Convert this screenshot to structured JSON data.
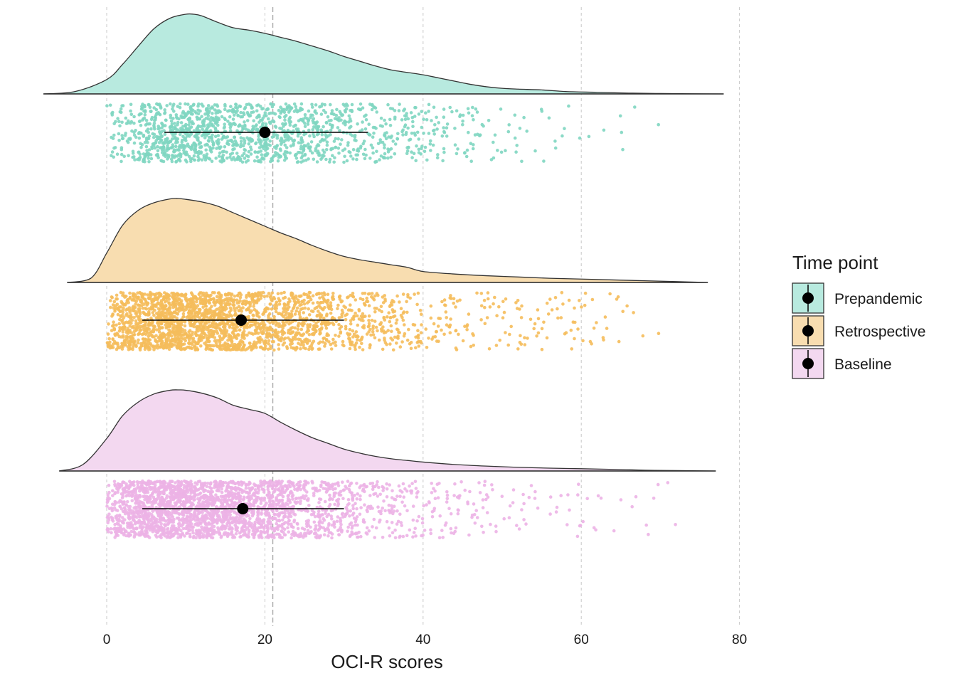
{
  "chart_data": {
    "type": "raincloud",
    "xlabel": "OCI-R scores",
    "xlim": [
      -8,
      80
    ],
    "x_ticks": [
      0,
      20,
      40,
      60,
      80
    ],
    "grid": "vertical-dashed",
    "reference_line": 21,
    "legend": {
      "title": "Time point",
      "placement": "right"
    },
    "series": [
      {
        "name": "Prepandemic",
        "color": "#7fd6c1",
        "fill": "#b8eadf",
        "mean": 20,
        "interval": [
          7.3,
          33
        ],
        "range": [
          0,
          71
        ],
        "density_x": [
          -8,
          -4,
          0,
          2,
          4,
          6,
          8,
          10,
          11,
          12,
          14,
          16,
          18,
          20,
          22,
          24,
          26,
          28,
          30,
          32,
          34,
          36,
          38,
          40,
          42,
          44,
          46,
          48,
          50,
          52,
          55,
          58,
          62,
          66,
          70,
          74,
          78
        ],
        "density_y": [
          0,
          0.03,
          0.18,
          0.37,
          0.6,
          0.82,
          0.95,
          1.0,
          1.0,
          0.98,
          0.9,
          0.83,
          0.8,
          0.76,
          0.71,
          0.66,
          0.6,
          0.54,
          0.47,
          0.41,
          0.35,
          0.3,
          0.27,
          0.24,
          0.2,
          0.16,
          0.12,
          0.09,
          0.07,
          0.06,
          0.05,
          0.03,
          0.02,
          0.01,
          0.005,
          0.002,
          0
        ]
      },
      {
        "name": "Retrospective",
        "color": "#f5bd5b",
        "fill": "#f8ddb0",
        "mean": 17,
        "interval": [
          4.5,
          30
        ],
        "range": [
          0,
          71
        ],
        "density_x": [
          -5,
          -2,
          0,
          2,
          4,
          6,
          8,
          9,
          10,
          12,
          14,
          16,
          18,
          20,
          22,
          24,
          26,
          28,
          30,
          32,
          34,
          36,
          38,
          40,
          44,
          48,
          52,
          56,
          60,
          64,
          68,
          72,
          76
        ],
        "density_y": [
          0,
          0.05,
          0.35,
          0.68,
          0.86,
          0.95,
          0.995,
          1.0,
          0.99,
          0.96,
          0.91,
          0.83,
          0.75,
          0.67,
          0.59,
          0.52,
          0.44,
          0.37,
          0.31,
          0.27,
          0.24,
          0.21,
          0.18,
          0.13,
          0.1,
          0.08,
          0.065,
          0.05,
          0.04,
          0.03,
          0.02,
          0.01,
          0
        ]
      },
      {
        "name": "Baseline",
        "color": "#ecb2e6",
        "fill": "#f3d8f0",
        "mean": 17.2,
        "interval": [
          4.5,
          30
        ],
        "range": [
          0,
          72
        ],
        "density_x": [
          -6,
          -3,
          0,
          2,
          4,
          6,
          8,
          9,
          10,
          12,
          14,
          16,
          18,
          20,
          22,
          24,
          26,
          28,
          30,
          32,
          34,
          36,
          38,
          40,
          44,
          48,
          52,
          56,
          60,
          64,
          68,
          72,
          77
        ],
        "density_y": [
          0,
          0.08,
          0.4,
          0.68,
          0.85,
          0.95,
          0.995,
          1.0,
          0.995,
          0.96,
          0.9,
          0.81,
          0.76,
          0.71,
          0.6,
          0.5,
          0.41,
          0.34,
          0.27,
          0.22,
          0.18,
          0.15,
          0.13,
          0.11,
          0.08,
          0.06,
          0.045,
          0.035,
          0.028,
          0.02,
          0.01,
          0.005,
          0
        ]
      }
    ]
  }
}
